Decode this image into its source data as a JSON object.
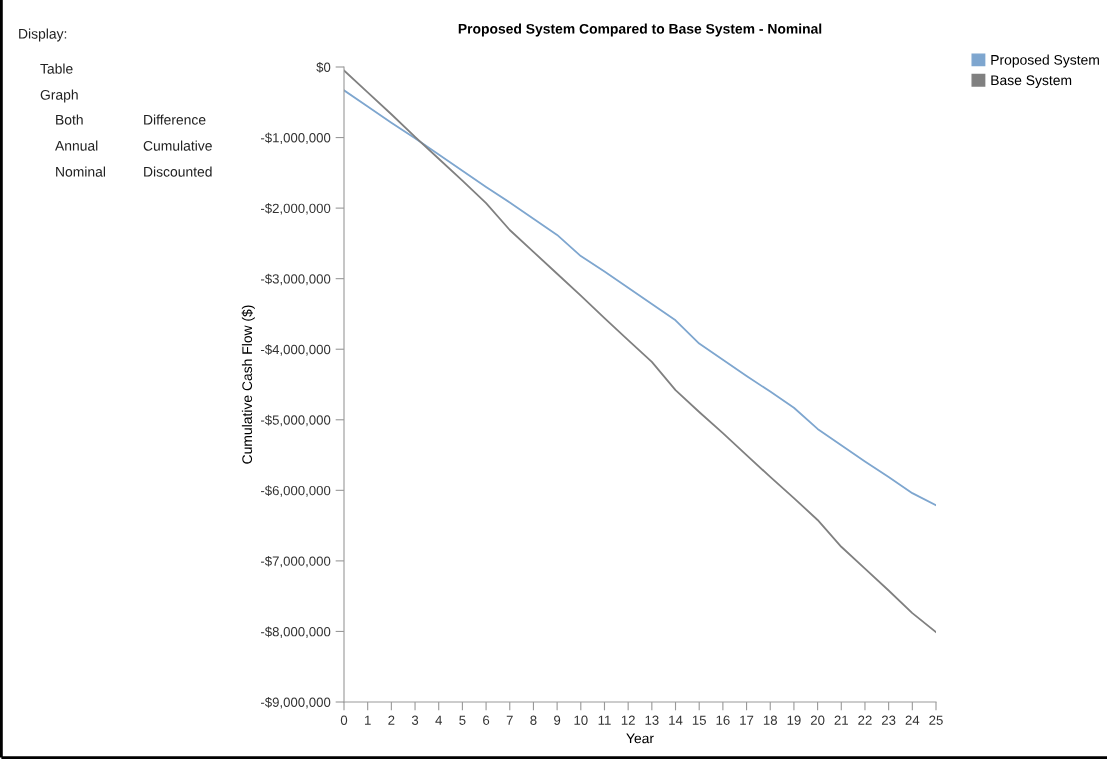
{
  "chart_data": {
    "type": "line",
    "title": "Proposed System Compared to Base System - Nominal",
    "xlabel": "Year",
    "ylabel": "Cumulative Cash Flow ($)",
    "x": [
      0,
      1,
      2,
      3,
      4,
      5,
      6,
      7,
      8,
      9,
      10,
      11,
      12,
      13,
      14,
      15,
      16,
      17,
      18,
      19,
      20,
      21,
      22,
      23,
      24,
      25
    ],
    "series": [
      {
        "name": "Proposed System",
        "color": "#7ea6cf",
        "values": [
          -330000,
          -560000,
          -790000,
          -1010000,
          -1240000,
          -1470000,
          -1700000,
          -1920000,
          -2150000,
          -2380000,
          -2680000,
          -2900000,
          -3130000,
          -3360000,
          -3590000,
          -3920000,
          -4150000,
          -4380000,
          -4600000,
          -4830000,
          -5130000,
          -5360000,
          -5590000,
          -5810000,
          -6040000,
          -6210000
        ]
      },
      {
        "name": "Base System",
        "color": "#808080",
        "values": [
          -50000,
          -360000,
          -670000,
          -990000,
          -1300000,
          -1610000,
          -1930000,
          -2310000,
          -2620000,
          -2930000,
          -3240000,
          -3560000,
          -3870000,
          -4180000,
          -4580000,
          -4890000,
          -5190000,
          -5500000,
          -5810000,
          -6110000,
          -6420000,
          -6800000,
          -7110000,
          -7420000,
          -7740000,
          -8010000
        ]
      }
    ],
    "xlim": [
      0,
      25
    ],
    "xticks": [
      0,
      1,
      2,
      3,
      4,
      5,
      6,
      7,
      8,
      9,
      10,
      11,
      12,
      13,
      14,
      15,
      16,
      17,
      18,
      19,
      20,
      21,
      22,
      23,
      24,
      25
    ],
    "ylim": [
      -9000000,
      0
    ],
    "yticks": [
      {
        "value": 0,
        "label": "$0"
      },
      {
        "value": -1000000,
        "label": "-$1,000,000"
      },
      {
        "value": -2000000,
        "label": "-$2,000,000"
      },
      {
        "value": -3000000,
        "label": "-$3,000,000"
      },
      {
        "value": -4000000,
        "label": "-$4,000,000"
      },
      {
        "value": -5000000,
        "label": "-$5,000,000"
      },
      {
        "value": -6000000,
        "label": "-$6,000,000"
      },
      {
        "value": -7000000,
        "label": "-$7,000,000"
      },
      {
        "value": -8000000,
        "label": "-$8,000,000"
      },
      {
        "value": -9000000,
        "label": "-$9,000,000"
      }
    ],
    "grid": false,
    "legend": "top right",
    "marker": "none",
    "line_style": "solid",
    "annotations": [
      "Display:",
      "Table",
      "Graph",
      "Both",
      "Difference",
      "Annual",
      "Cumulative",
      "Nominal",
      "Discounted"
    ]
  }
}
